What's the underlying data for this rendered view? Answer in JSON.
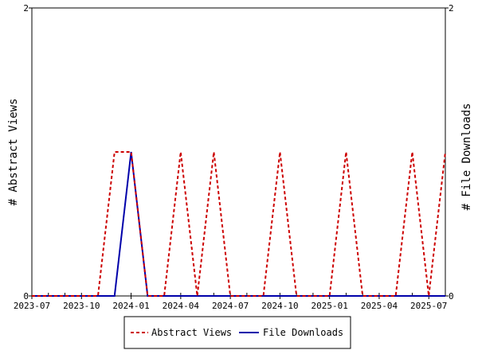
{
  "chart_data": {
    "type": "line",
    "title": "",
    "ylabel_left": "# Abstract Views",
    "ylabel_right": "# File Downloads",
    "x_ticks": [
      "2023-07",
      "2023-10",
      "2024-01",
      "2024-04",
      "2024-07",
      "2024-10",
      "2025-01",
      "2025-04",
      "2025-07"
    ],
    "x_range": [
      "2023-07",
      "2025-08"
    ],
    "y_left_range": [
      0,
      2
    ],
    "y_right_range": [
      0,
      2
    ],
    "y_left_ticks": [
      "0",
      "2"
    ],
    "y_right_ticks": [
      "0",
      "2"
    ],
    "grid": false,
    "legend_position": "bottom",
    "series": [
      {
        "name": "Abstract Views",
        "color": "#cc0000",
        "style": "dashed",
        "x": [
          "2023-07",
          "2023-08",
          "2023-09",
          "2023-10",
          "2023-11",
          "2023-12",
          "2024-01",
          "2024-02",
          "2024-03",
          "2024-04",
          "2024-05",
          "2024-06",
          "2024-07",
          "2024-08",
          "2024-09",
          "2024-10",
          "2024-11",
          "2024-12",
          "2025-01",
          "2025-02",
          "2025-03",
          "2025-04",
          "2025-05",
          "2025-06",
          "2025-07",
          "2025-08"
        ],
        "values": [
          0,
          0,
          0,
          0,
          0,
          1,
          1,
          0,
          0,
          1,
          0,
          1,
          0,
          0,
          0,
          1,
          0,
          0,
          0,
          1,
          0,
          0,
          0,
          1,
          0,
          1
        ]
      },
      {
        "name": "File Downloads",
        "color": "#0000aa",
        "style": "solid",
        "x": [
          "2023-07",
          "2023-08",
          "2023-09",
          "2023-10",
          "2023-11",
          "2023-12",
          "2024-01",
          "2024-02",
          "2024-03",
          "2024-04",
          "2024-05",
          "2024-06",
          "2024-07",
          "2024-08",
          "2024-09",
          "2024-10",
          "2024-11",
          "2024-12",
          "2025-01",
          "2025-02",
          "2025-03",
          "2025-04",
          "2025-05",
          "2025-06",
          "2025-07",
          "2025-08"
        ],
        "values": [
          0,
          0,
          0,
          0,
          0,
          0,
          1,
          0,
          0,
          0,
          0,
          0,
          0,
          0,
          0,
          0,
          0,
          0,
          0,
          0,
          0,
          0,
          0,
          0,
          0,
          0
        ]
      }
    ]
  }
}
